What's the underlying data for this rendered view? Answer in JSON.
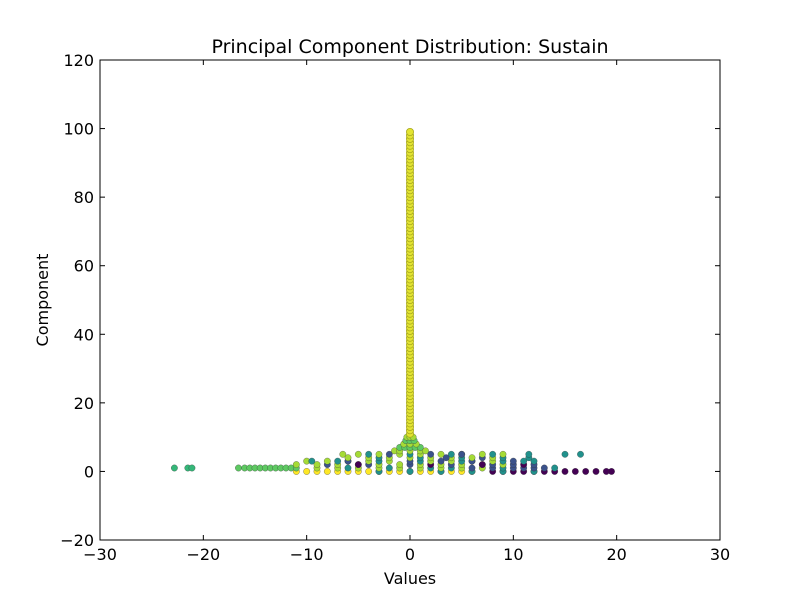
{
  "chart_data": {
    "type": "scatter",
    "title": "Principal Component Distribution: Sustain",
    "xlabel": "Values",
    "ylabel": "Component",
    "xlim": [
      -30,
      30
    ],
    "ylim": [
      -20,
      120
    ],
    "xticks": [
      -30,
      -20,
      -10,
      0,
      10,
      20,
      30
    ],
    "xtick_labels": [
      "−30",
      "−20",
      "−10",
      "0",
      "10",
      "20",
      "30"
    ],
    "yticks": [
      -20,
      0,
      20,
      40,
      60,
      80,
      100,
      120
    ],
    "ytick_labels": [
      "−20",
      "0",
      "20",
      "40",
      "60",
      "80",
      "100",
      "120"
    ],
    "grid": false,
    "colormap": "viridis",
    "colors": [
      "#440154",
      "#3b528b",
      "#21918c",
      "#5ec962",
      "#a5db36",
      "#fde725"
    ],
    "point_groups": [
      {
        "component": 0,
        "color": "#fde725",
        "values": [
          -11,
          -10,
          -9,
          -8,
          -7,
          -6,
          -5,
          -4,
          -3,
          -2,
          -1,
          0,
          1,
          2,
          3,
          4,
          5,
          6
        ]
      },
      {
        "component": 0,
        "color": "#440154",
        "values": [
          8,
          9,
          10,
          11,
          12,
          13,
          14,
          15,
          16,
          17,
          18,
          19,
          19.5
        ]
      },
      {
        "component": 0,
        "color": "#21918c",
        "values": [
          -3,
          0,
          3,
          6,
          9,
          12
        ]
      },
      {
        "component": 1,
        "color": "#5ec962",
        "values": [
          -16.6,
          -16,
          -15.5,
          -15,
          -14.5,
          -14,
          -13.5,
          -13,
          -12.5,
          -12,
          -11.5,
          -11
        ]
      },
      {
        "component": 1,
        "color": "#35b779",
        "values": [
          -22.8,
          -21.5,
          -21.1
        ]
      },
      {
        "component": 1,
        "color": "#a5db36",
        "values": [
          -9,
          -7,
          -5,
          -3,
          -1,
          1,
          3,
          5,
          7
        ]
      },
      {
        "component": 1,
        "color": "#3b528b",
        "values": [
          6,
          8,
          10,
          11,
          12,
          13
        ]
      },
      {
        "component": 1,
        "color": "#21918c",
        "values": [
          -6,
          -2,
          2,
          4,
          9,
          14
        ]
      },
      {
        "component": 2,
        "color": "#a5db36",
        "values": [
          -11,
          -9,
          -7,
          -5,
          -3,
          -1,
          1,
          3,
          5,
          7,
          9
        ]
      },
      {
        "component": 2,
        "color": "#3b528b",
        "values": [
          -8,
          -4,
          0,
          4,
          8,
          10,
          12
        ]
      },
      {
        "component": 2,
        "color": "#440154",
        "values": [
          -5,
          2,
          7,
          11
        ]
      },
      {
        "component": 3,
        "color": "#a5db36",
        "values": [
          -10,
          -8,
          -6,
          -4,
          -2,
          2,
          4,
          6,
          8
        ]
      },
      {
        "component": 3,
        "color": "#21918c",
        "values": [
          -9.5,
          -7,
          -3,
          1,
          5,
          9,
          11,
          12
        ]
      },
      {
        "component": 3,
        "color": "#3b528b",
        "values": [
          -6,
          0,
          3,
          6,
          10
        ]
      },
      {
        "component": 4,
        "color": "#a5db36",
        "values": [
          -6,
          -4,
          -2,
          0,
          2,
          4,
          6,
          8
        ]
      },
      {
        "component": 4,
        "color": "#21918c",
        "values": [
          -3,
          1,
          5,
          9,
          11.5
        ]
      },
      {
        "component": 4,
        "color": "#3b528b",
        "values": [
          3.5,
          7
        ]
      },
      {
        "component": 5,
        "color": "#a5db36",
        "values": [
          -6.5,
          -5,
          -3,
          -1,
          1,
          3,
          5,
          7,
          9
        ]
      },
      {
        "component": 5,
        "color": "#21918c",
        "values": [
          -4,
          0,
          4,
          8,
          11.5,
          15,
          16.5
        ]
      },
      {
        "component": 5,
        "color": "#3b528b",
        "values": [
          -2,
          2,
          5
        ]
      },
      {
        "component": 6,
        "color": "#a5db36",
        "values": [
          -1.5,
          -1,
          0,
          1,
          1.5
        ]
      },
      {
        "component": 7,
        "color": "#5ec962",
        "values": [
          -1,
          -0.5,
          0,
          0.5,
          1
        ]
      },
      {
        "component": 8,
        "color": "#a5db36",
        "values": [
          -0.6,
          0,
          0.6
        ]
      },
      {
        "component": 9,
        "color": "#5ec962",
        "values": [
          -0.4,
          0,
          0.4
        ]
      },
      {
        "component": 10,
        "color": "#a5db36",
        "values": [
          -0.3,
          0,
          0.3
        ]
      }
    ],
    "spike": {
      "x": 0,
      "y_from": 11,
      "y_to": 99,
      "color": "#e3e431",
      "edge_color": "#a8a81e"
    }
  }
}
